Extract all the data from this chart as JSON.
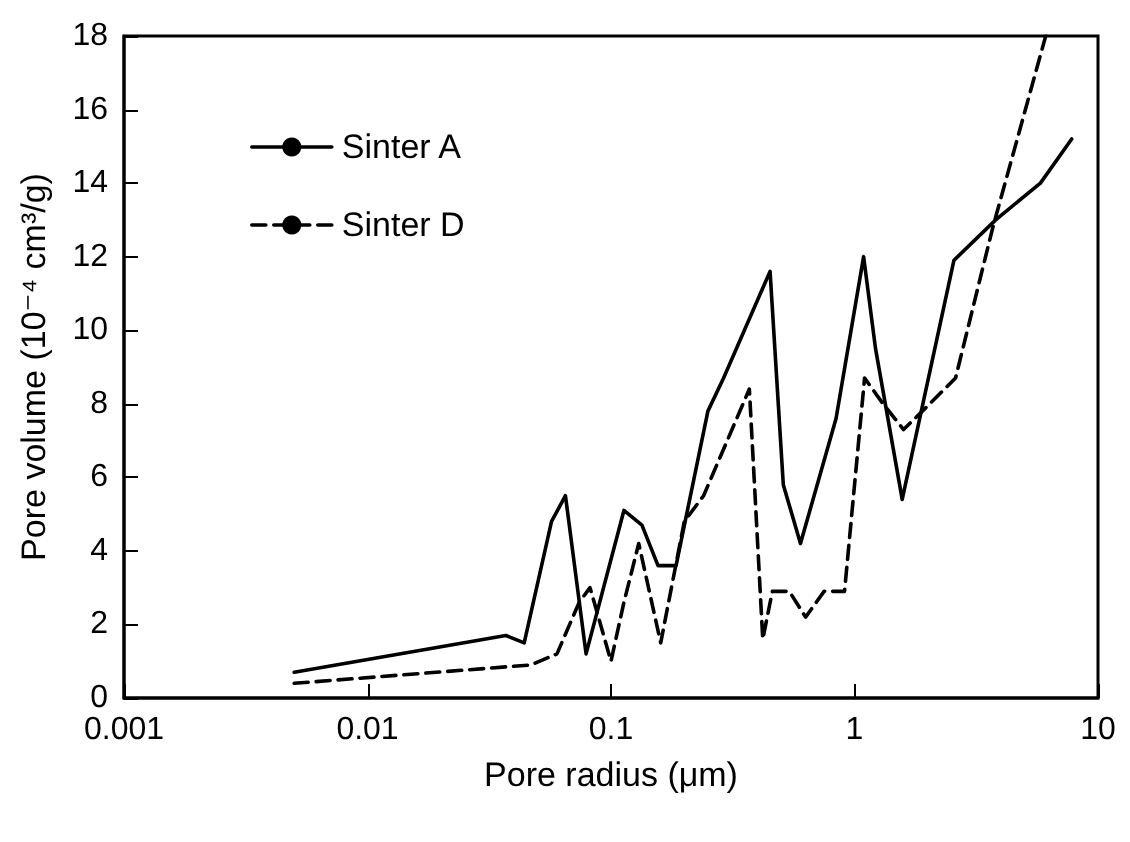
{
  "chart_data": {
    "type": "line",
    "xlabel": "Pore radius (μm)",
    "ylabel": "Pore volume (10⁻⁴ cm³/g)",
    "log": "x",
    "xlim": [
      0.001,
      10
    ],
    "xticks": [
      0.001,
      0.01,
      0.1,
      1,
      10
    ],
    "ylim": [
      0,
      18
    ],
    "yticks": [
      0,
      2,
      4,
      6,
      8,
      10,
      12,
      14,
      16,
      18
    ],
    "grid": false,
    "legend": "top left",
    "marker": "none",
    "series": [
      {
        "name": "Sinter A",
        "color": "#000000",
        "line_style": "solid",
        "x": [
          0.005,
          0.037,
          0.044,
          0.057,
          0.065,
          0.079,
          0.113,
          0.134,
          0.156,
          0.185,
          0.25,
          0.29,
          0.45,
          0.51,
          0.6,
          0.84,
          1.09,
          1.22,
          1.57,
          2.56,
          3.8,
          5.8,
          7.8
        ],
        "values": [
          0.7,
          1.7,
          1.5,
          4.8,
          5.5,
          1.2,
          5.1,
          4.7,
          3.6,
          3.6,
          7.8,
          8.7,
          11.6,
          5.8,
          4.2,
          7.6,
          12.0,
          9.5,
          5.4,
          11.9,
          13.0,
          14.0,
          15.2
        ]
      },
      {
        "name": "Sinter D",
        "color": "#000000",
        "line_style": "dashed",
        "x": [
          0.005,
          0.047,
          0.06,
          0.074,
          0.082,
          0.1,
          0.113,
          0.13,
          0.16,
          0.2,
          0.24,
          0.37,
          0.42,
          0.46,
          0.54,
          0.63,
          0.75,
          0.91,
          1.1,
          1.31,
          1.59,
          1.9,
          2.6,
          3.7,
          6.1
        ],
        "values": [
          0.4,
          0.9,
          1.2,
          2.6,
          3.0,
          1.0,
          2.6,
          4.2,
          1.5,
          4.8,
          5.5,
          8.4,
          1.6,
          2.9,
          2.9,
          2.2,
          2.9,
          2.9,
          8.7,
          8.0,
          7.3,
          7.8,
          8.7,
          12.8,
          18.0
        ]
      }
    ]
  }
}
